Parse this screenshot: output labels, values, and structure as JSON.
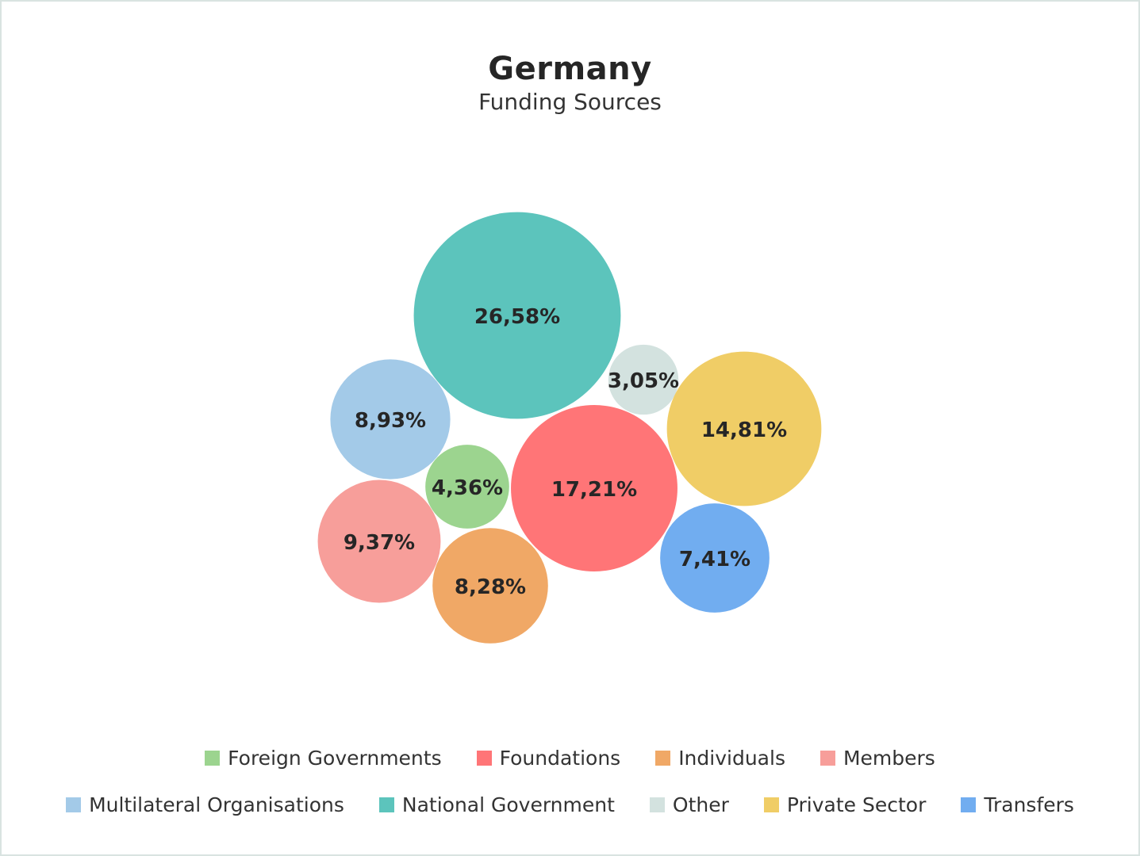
{
  "chart_data": {
    "type": "bubble",
    "title": "Germany",
    "subtitle": "Funding Sources",
    "series": [
      {
        "name": "Foreign Governments",
        "value": 4.36,
        "label": "4,36%",
        "color": "#9cd48f"
      },
      {
        "name": "Foundations",
        "value": 17.21,
        "label": "17,21%",
        "color": "#ff7577"
      },
      {
        "name": "Individuals",
        "value": 8.28,
        "label": "8,28%",
        "color": "#f0a866"
      },
      {
        "name": "Members",
        "value": 9.37,
        "label": "9,37%",
        "color": "#f79e9a"
      },
      {
        "name": "Multilateral Organisations",
        "value": 8.93,
        "label": "8,93%",
        "color": "#a3cae8"
      },
      {
        "name": "National Government",
        "value": 26.58,
        "label": "26,58%",
        "color": "#5cc4bc"
      },
      {
        "name": "Other",
        "value": 3.05,
        "label": "3,05%",
        "color": "#d3e2df"
      },
      {
        "name": "Private Sector",
        "value": 14.81,
        "label": "14,81%",
        "color": "#f0cd66"
      },
      {
        "name": "Transfers",
        "value": 7.41,
        "label": "7,41%",
        "color": "#71adf0"
      }
    ],
    "legend": {
      "placement": "bottom",
      "rows": [
        [
          "Foreign Governments",
          "Foundations",
          "Individuals",
          "Members"
        ],
        [
          "Multilateral Organisations",
          "National Government",
          "Other",
          "Private Sector",
          "Transfers"
        ]
      ]
    }
  }
}
